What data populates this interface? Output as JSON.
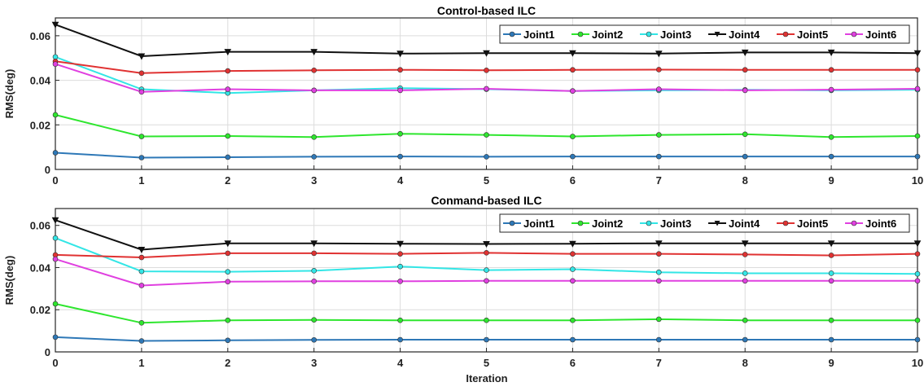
{
  "xlabel": "Iteration",
  "chart_data": [
    {
      "type": "line",
      "title": "Control-based ILC",
      "xlabel": "",
      "ylabel": "RMS(deg)",
      "x": [
        0,
        1,
        2,
        3,
        4,
        5,
        6,
        7,
        8,
        9,
        10
      ],
      "xlim": [
        0,
        10
      ],
      "ylim": [
        0,
        0.068
      ],
      "yticks": [
        0,
        0.02,
        0.04,
        0.06
      ],
      "ytick_labels": [
        "0",
        "0.02",
        "0.04",
        "0.06"
      ],
      "grid": true,
      "legend_position": "top-right",
      "series": [
        {
          "name": "Joint1",
          "color": "#2e78b7",
          "marker": "circle",
          "values": [
            0.0075,
            0.0053,
            0.0055,
            0.0057,
            0.0058,
            0.0057,
            0.0058,
            0.0058,
            0.0058,
            0.0058,
            0.0058
          ]
        },
        {
          "name": "Joint2",
          "color": "#2ee62e",
          "marker": "circle",
          "values": [
            0.0245,
            0.0148,
            0.015,
            0.0145,
            0.016,
            0.0155,
            0.0148,
            0.0155,
            0.0158,
            0.0145,
            0.015
          ]
        },
        {
          "name": "Joint3",
          "color": "#33e6e6",
          "marker": "circle",
          "values": [
            0.0505,
            0.036,
            0.0343,
            0.0355,
            0.0365,
            0.036,
            0.0352,
            0.0355,
            0.0357,
            0.0355,
            0.0358
          ]
        },
        {
          "name": "Joint4",
          "color": "#111111",
          "marker": "triangle-down",
          "values": [
            0.065,
            0.0508,
            0.0528,
            0.0528,
            0.052,
            0.0522,
            0.0522,
            0.052,
            0.0525,
            0.0525,
            0.0522
          ]
        },
        {
          "name": "Joint5",
          "color": "#e03232",
          "marker": "circle",
          "values": [
            0.0485,
            0.0432,
            0.0442,
            0.0445,
            0.0447,
            0.0445,
            0.0447,
            0.0448,
            0.0447,
            0.0447,
            0.0447
          ]
        },
        {
          "name": "Joint6",
          "color": "#e040e0",
          "marker": "circle",
          "values": [
            0.0473,
            0.0348,
            0.036,
            0.0355,
            0.0355,
            0.0362,
            0.0352,
            0.036,
            0.0355,
            0.0358,
            0.0362
          ]
        }
      ]
    },
    {
      "type": "line",
      "title": "Conmand-based ILC",
      "xlabel": "Iteration",
      "ylabel": "RMS(deg)",
      "x": [
        0,
        1,
        2,
        3,
        4,
        5,
        6,
        7,
        8,
        9,
        10
      ],
      "xlim": [
        0,
        10
      ],
      "ylim": [
        0,
        0.068
      ],
      "yticks": [
        0,
        0.02,
        0.04,
        0.06
      ],
      "ytick_labels": [
        "0",
        "0.02",
        "0.04",
        "0.06"
      ],
      "grid": true,
      "legend_position": "top-right",
      "series": [
        {
          "name": "Joint1",
          "color": "#2e78b7",
          "marker": "circle",
          "values": [
            0.007,
            0.0052,
            0.0055,
            0.0057,
            0.0058,
            0.0058,
            0.0058,
            0.0058,
            0.0058,
            0.0058,
            0.0058
          ]
        },
        {
          "name": "Joint2",
          "color": "#2ee62e",
          "marker": "circle",
          "values": [
            0.0228,
            0.0138,
            0.015,
            0.0152,
            0.015,
            0.015,
            0.015,
            0.0155,
            0.015,
            0.015,
            0.015
          ]
        },
        {
          "name": "Joint3",
          "color": "#33e6e6",
          "marker": "circle",
          "values": [
            0.054,
            0.0382,
            0.038,
            0.0385,
            0.0405,
            0.0388,
            0.0392,
            0.0378,
            0.0373,
            0.0373,
            0.037
          ]
        },
        {
          "name": "Joint4",
          "color": "#111111",
          "marker": "triangle-down",
          "values": [
            0.0625,
            0.0485,
            0.0515,
            0.0515,
            0.0513,
            0.0512,
            0.0513,
            0.0515,
            0.0515,
            0.0515,
            0.0515
          ]
        },
        {
          "name": "Joint5",
          "color": "#e03232",
          "marker": "circle",
          "values": [
            0.046,
            0.0448,
            0.0468,
            0.0468,
            0.0465,
            0.047,
            0.0465,
            0.0465,
            0.0462,
            0.0458,
            0.0465
          ]
        },
        {
          "name": "Joint6",
          "color": "#e040e0",
          "marker": "circle",
          "values": [
            0.044,
            0.0315,
            0.0333,
            0.0335,
            0.0335,
            0.0337,
            0.0337,
            0.0337,
            0.0337,
            0.0337,
            0.0337
          ]
        }
      ]
    }
  ]
}
